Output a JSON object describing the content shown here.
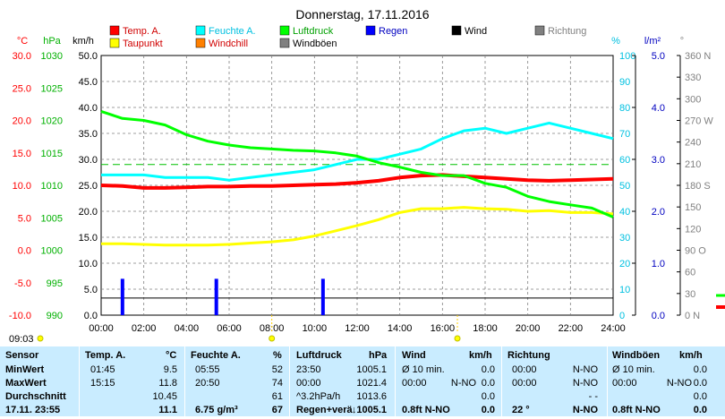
{
  "title": "Donnerstag, 17.11.2016",
  "colors": {
    "temp": "#ff0000",
    "dew": "#ffff00",
    "humidity": "#00ffff",
    "windchill": "#ff8000",
    "pressure": "#00ff00",
    "gusts": "#808080",
    "rain": "#0000ff",
    "wind": "#000000",
    "direction": "#808080"
  },
  "axis_units": {
    "temp": "°C",
    "pressure": "hPa",
    "wind": "km/h",
    "humidity": "%",
    "rain": "l/m²",
    "direction": "°"
  },
  "legend": [
    {
      "key": "temp",
      "label": "Temp. A.",
      "color": "#ff0000"
    },
    {
      "key": "dew",
      "label": "Taupunkt",
      "color": "#ffff00"
    },
    {
      "key": "humidity",
      "label": "Feuchte A.",
      "color": "#00ffff"
    },
    {
      "key": "windchill",
      "label": "Windchill",
      "color": "#ff8000"
    },
    {
      "key": "pressure",
      "label": "Luftdruck",
      "color": "#00ff00"
    },
    {
      "key": "gusts",
      "label": "Windböen",
      "color": "#808080"
    },
    {
      "key": "rain",
      "label": "Regen",
      "color": "#0000ff"
    },
    {
      "key": "wind",
      "label": "Wind",
      "color": "#000000"
    },
    {
      "key": "direction",
      "label": "Richtung",
      "color": "#808080"
    }
  ],
  "chart_data": {
    "type": "line",
    "title": "Donnerstag, 17.11.2016",
    "x_ticks": [
      "00:00",
      "02:00",
      "04:00",
      "06:00",
      "08:00",
      "10:00",
      "12:00",
      "14:00",
      "16:00",
      "18:00",
      "20:00",
      "22:00",
      "24:00"
    ],
    "xlim": [
      0,
      24
    ],
    "axes": {
      "temp": {
        "unit": "°C",
        "range": [
          -10,
          30
        ],
        "ticks": [
          "30.0",
          "25.0",
          "20.0",
          "15.0",
          "10.0",
          "5.0",
          "0.0",
          "-5.0",
          "-10.0"
        ]
      },
      "pressure": {
        "unit": "hPa",
        "range": [
          990,
          1030
        ],
        "ticks": [
          "1030",
          "1025",
          "1020",
          "1015",
          "1010",
          "1005",
          "1000",
          "995",
          "990"
        ]
      },
      "wind": {
        "unit": "km/h",
        "range": [
          0,
          50
        ],
        "ticks": [
          "50.0",
          "45.0",
          "40.0",
          "35.0",
          "30.0",
          "25.0",
          "20.0",
          "15.0",
          "10.0",
          "5.0",
          "0.0"
        ]
      },
      "humidity": {
        "unit": "%",
        "range": [
          0,
          100
        ],
        "ticks": [
          "100",
          "90",
          "80",
          "70",
          "60",
          "50",
          "40",
          "30",
          "20",
          "10",
          "0"
        ]
      },
      "rain": {
        "unit": "l/m²",
        "range": [
          0,
          5
        ],
        "ticks": [
          "5.0",
          "4.0",
          "3.0",
          "2.0",
          "1.0",
          "0.0"
        ]
      },
      "direction": {
        "unit": "°",
        "range": [
          0,
          360
        ],
        "ticks": [
          "360 N",
          "330",
          "300",
          "270 W",
          "240",
          "210",
          "180 S",
          "150",
          "120",
          "90 O",
          "60",
          "30",
          "0 N"
        ]
      }
    },
    "series": [
      {
        "name": "Temp. A.",
        "axis": "temp",
        "color": "#ff0000",
        "x": [
          0,
          1,
          2,
          3,
          4,
          5,
          6,
          7,
          8,
          9,
          10,
          11,
          12,
          13,
          14,
          15,
          16,
          17,
          18,
          19,
          20,
          21,
          22,
          23,
          24
        ],
        "y": [
          10.0,
          9.9,
          9.6,
          9.6,
          9.7,
          9.8,
          9.8,
          9.9,
          9.9,
          10.0,
          10.1,
          10.2,
          10.4,
          10.7,
          11.2,
          11.5,
          11.6,
          11.4,
          11.2,
          11.0,
          10.8,
          10.7,
          10.8,
          10.9,
          11.0
        ]
      },
      {
        "name": "Taupunkt",
        "axis": "temp",
        "color": "#ffff00",
        "x": [
          0,
          1,
          2,
          3,
          4,
          5,
          6,
          7,
          8,
          9,
          10,
          11,
          12,
          13,
          14,
          15,
          16,
          17,
          18,
          19,
          20,
          21,
          22,
          23,
          24
        ],
        "y": [
          1.0,
          1.0,
          0.9,
          0.8,
          0.8,
          0.8,
          0.9,
          1.1,
          1.3,
          1.6,
          2.2,
          3.0,
          3.8,
          4.7,
          5.8,
          6.4,
          6.4,
          6.6,
          6.4,
          6.3,
          6.0,
          6.1,
          5.8,
          5.8,
          5.6
        ]
      },
      {
        "name": "Feuchte A.",
        "axis": "humidity",
        "color": "#00ffff",
        "x": [
          0,
          1,
          2,
          3,
          4,
          5,
          6,
          7,
          8,
          9,
          10,
          11,
          12,
          13,
          14,
          15,
          16,
          17,
          18,
          19,
          20,
          21,
          22,
          23,
          24
        ],
        "y": [
          54,
          54,
          54,
          53,
          53,
          53,
          52,
          53,
          54,
          55,
          56,
          58,
          60,
          60,
          62,
          64,
          68,
          71,
          72,
          70,
          72,
          74,
          72,
          70,
          68
        ]
      },
      {
        "name": "Luftdruck",
        "axis": "pressure",
        "color": "#00ff00",
        "x": [
          0,
          1,
          2,
          3,
          4,
          5,
          6,
          7,
          8,
          9,
          10,
          11,
          12,
          13,
          14,
          15,
          16,
          17,
          18,
          19,
          20,
          21,
          22,
          23,
          24
        ],
        "y": [
          1021.4,
          1020.3,
          1020.0,
          1019.3,
          1017.8,
          1016.8,
          1016.2,
          1015.8,
          1015.6,
          1015.4,
          1015.3,
          1015.0,
          1014.5,
          1013.5,
          1012.8,
          1012.0,
          1011.5,
          1011.5,
          1010.3,
          1009.7,
          1008.3,
          1007.5,
          1007.0,
          1006.5,
          1005.1
        ]
      }
    ],
    "rain_bars": [
      {
        "x": 1.0,
        "value": 0.7
      },
      {
        "x": 5.4,
        "value": 0.7
      },
      {
        "x": 10.4,
        "value": 0.7
      }
    ],
    "reference_lines": [
      {
        "axis": "humidity",
        "value": 58,
        "style": "dashed",
        "color": "#00c000"
      },
      {
        "axis": "wind",
        "value": 3.3,
        "style": "solid",
        "color": "#000000"
      }
    ],
    "grid": true,
    "markers": [
      {
        "label": "09:03",
        "x": 0
      },
      {
        "x": 8.0
      },
      {
        "x": 16.7
      }
    ]
  },
  "table": {
    "headers": {
      "sensor": "Sensor",
      "temp": "Temp. A.",
      "temp_unit": "°C",
      "hum": "Feuchte A.",
      "hum_unit": "%",
      "press": "Luftdruck",
      "press_unit": "hPa",
      "wind": "Wind",
      "wind_unit": "km/h",
      "dir": "Richtung",
      "gust": "Windböen",
      "gust_unit": "km/h"
    },
    "rows": [
      {
        "label": "MinWert",
        "temp_time": "01:45",
        "temp_val": "9.5",
        "hum_time": "05:55",
        "hum_val": "52",
        "press_time": "23:50",
        "press_val": "1005.1",
        "wind_time": "Ø 10 min.",
        "wind_val": "0.0",
        "dir_time": "00:00",
        "dir_val": "N-NO",
        "gust_time": "Ø 10 min.",
        "gust_val": "0.0"
      },
      {
        "label": "MaxWert",
        "temp_time": "15:15",
        "temp_val": "11.8",
        "hum_time": "20:50",
        "hum_val": "74",
        "press_time": "00:00",
        "press_val": "1021.4",
        "wind_time": "00:00",
        "wind_dir": "N-NO",
        "wind_val": "0.0",
        "dir_time": "00:00",
        "dir_val": "N-NO",
        "gust_time": "00:00",
        "gust_dir": "N-NO",
        "gust_val": "0.0"
      },
      {
        "label": "Durchschnitt",
        "temp_time": "",
        "temp_val": "10.45",
        "hum_time": "",
        "hum_val": "61",
        "press_time": "^3.2hPa/h",
        "press_val": "1013.6",
        "wind_time": "",
        "wind_val": "0.0",
        "dir_time": "",
        "dir_val": "- -",
        "gust_time": "",
        "gust_val": "0.0"
      },
      {
        "label": "17.11. 23:55",
        "temp_time": "",
        "temp_val": "11.1",
        "hum_time": "6.75 g/m³",
        "hum_val": "67",
        "press_time": "Regen+verä",
        "press_val": "↓1005.1",
        "wind_time": "0.8ft N-NO",
        "wind_val": "0.0",
        "dir_time": "22 °",
        "dir_val": "N-NO",
        "gust_time": "0.8ft N-NO",
        "gust_val": "0.0"
      }
    ]
  }
}
